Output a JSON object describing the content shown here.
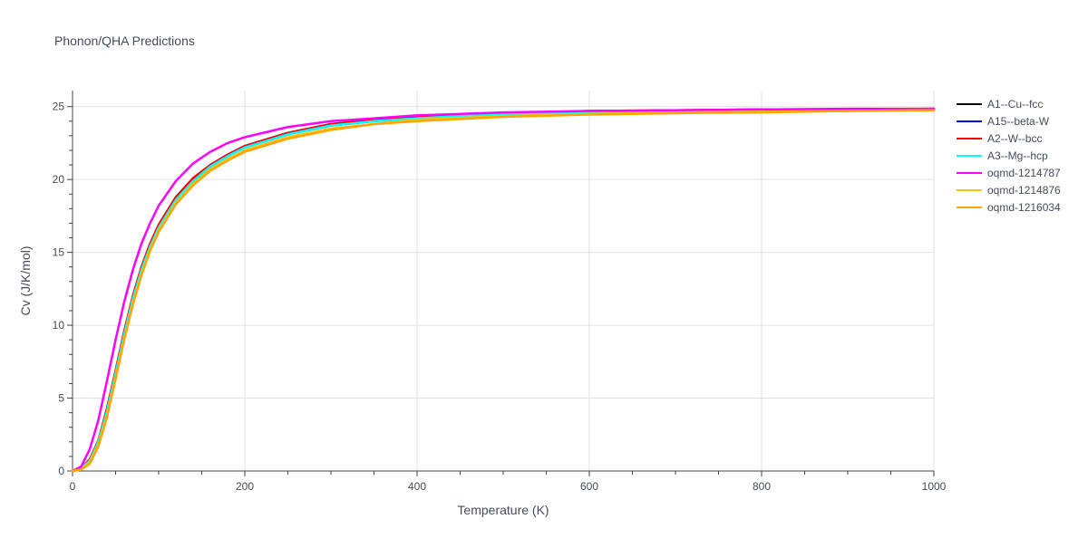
{
  "chart_data": {
    "type": "line",
    "title": "Phonon/QHA Predictions",
    "xlabel": "Temperature (K)",
    "ylabel": "Cv (J/K/mol)",
    "xlim": [
      0,
      1000
    ],
    "ylim": [
      0,
      26.1
    ],
    "xticks": [
      0,
      200,
      400,
      600,
      800,
      1000
    ],
    "yticks": [
      0,
      5,
      10,
      15,
      20,
      25
    ],
    "xtick_labels": [
      "0",
      "200",
      "400",
      "600",
      "800",
      "1000"
    ],
    "ytick_labels": [
      "0",
      "5",
      "10",
      "15",
      "20",
      "25"
    ],
    "grid": true,
    "legend_position": "right",
    "x": [
      0,
      10,
      20,
      30,
      40,
      50,
      60,
      70,
      80,
      90,
      100,
      120,
      140,
      160,
      180,
      200,
      250,
      300,
      350,
      400,
      500,
      600,
      700,
      800,
      900,
      1000
    ],
    "series": [
      {
        "name": "A1--Cu--fcc",
        "color": "#000000",
        "values": [
          0,
          0.2,
          0.7,
          2.0,
          4.1,
          6.7,
          9.4,
          11.8,
          13.8,
          15.4,
          16.7,
          18.6,
          19.9,
          20.9,
          21.6,
          22.2,
          23.1,
          23.7,
          24.0,
          24.2,
          24.5,
          24.6,
          24.7,
          24.75,
          24.8,
          24.8
        ]
      },
      {
        "name": "A15--beta-W",
        "color": "#0000ff",
        "values": [
          0,
          0.2,
          0.7,
          2.0,
          4.2,
          6.8,
          9.5,
          11.9,
          13.9,
          15.5,
          16.8,
          18.7,
          20.0,
          21.0,
          21.7,
          22.3,
          23.2,
          23.8,
          24.1,
          24.3,
          24.5,
          24.65,
          24.75,
          24.8,
          24.8,
          24.85
        ]
      },
      {
        "name": "A2--W--bcc",
        "color": "#ff0000",
        "values": [
          0,
          0.2,
          0.8,
          2.1,
          4.3,
          6.9,
          9.6,
          12.0,
          14.0,
          15.6,
          16.9,
          18.8,
          20.1,
          21.0,
          21.7,
          22.3,
          23.2,
          23.8,
          24.1,
          24.3,
          24.55,
          24.7,
          24.75,
          24.8,
          24.85,
          24.85
        ]
      },
      {
        "name": "A3--Mg--hcp",
        "color": "#00ffff",
        "values": [
          0,
          0.2,
          0.7,
          2.0,
          4.1,
          6.7,
          9.4,
          11.8,
          13.8,
          15.4,
          16.7,
          18.6,
          19.9,
          20.9,
          21.6,
          22.2,
          23.1,
          23.7,
          24.0,
          24.2,
          24.5,
          24.6,
          24.7,
          24.75,
          24.8,
          24.8
        ]
      },
      {
        "name": "oqmd-1214787",
        "color": "#ff00ff",
        "values": [
          0,
          0.3,
          1.5,
          3.5,
          6.2,
          9.0,
          11.6,
          13.8,
          15.6,
          17.0,
          18.2,
          19.9,
          21.1,
          21.9,
          22.5,
          22.9,
          23.6,
          24.0,
          24.2,
          24.4,
          24.6,
          24.7,
          24.75,
          24.8,
          24.8,
          24.85
        ]
      },
      {
        "name": "oqmd-1214876",
        "color": "#f5c518",
        "values": [
          0,
          0.1,
          0.6,
          1.8,
          3.8,
          6.4,
          9.1,
          11.5,
          13.5,
          15.2,
          16.5,
          18.4,
          19.7,
          20.7,
          21.4,
          22.0,
          22.9,
          23.5,
          23.8,
          24.1,
          24.35,
          24.5,
          24.6,
          24.65,
          24.7,
          24.75
        ]
      },
      {
        "name": "oqmd-1216034",
        "color": "#ffa500",
        "values": [
          0,
          0.1,
          0.5,
          1.7,
          3.7,
          6.3,
          9.0,
          11.4,
          13.4,
          15.1,
          16.4,
          18.3,
          19.6,
          20.6,
          21.3,
          21.9,
          22.8,
          23.4,
          23.8,
          24.0,
          24.3,
          24.45,
          24.55,
          24.6,
          24.7,
          24.75
        ]
      }
    ]
  }
}
